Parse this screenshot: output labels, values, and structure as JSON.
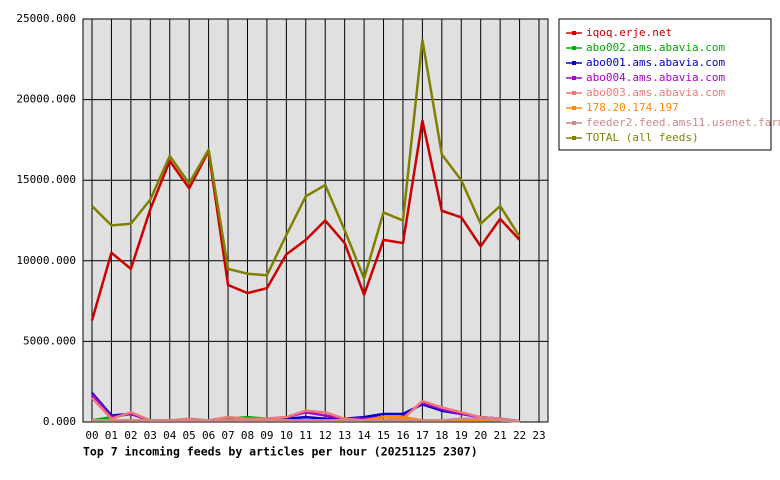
{
  "chart_data": {
    "type": "line",
    "title": "Top 7 incoming feeds by articles per hour (20251125 2307)",
    "categories": [
      "00",
      "01",
      "02",
      "03",
      "04",
      "05",
      "06",
      "07",
      "08",
      "09",
      "10",
      "11",
      "12",
      "13",
      "14",
      "15",
      "16",
      "17",
      "18",
      "19",
      "20",
      "21",
      "22",
      "23"
    ],
    "ylim": [
      0,
      25000
    ],
    "yticks": [
      {
        "value": 0,
        "label": "0.000"
      },
      {
        "value": 5000,
        "label": "5000.000"
      },
      {
        "value": 10000,
        "label": "10000.000"
      },
      {
        "value": 15000,
        "label": "15000.000"
      },
      {
        "value": 20000,
        "label": "20000.000"
      },
      {
        "value": 25000,
        "label": "25000.000"
      }
    ],
    "grid": true,
    "legend": "right",
    "series": [
      {
        "name": "iqoq.erje.net",
        "color": "#cc0000",
        "values": [
          6300,
          10500,
          9500,
          13200,
          16200,
          14500,
          16800,
          8500,
          8000,
          8300,
          10400,
          11300,
          12500,
          11100,
          7900,
          11300,
          11100,
          18700,
          13100,
          12700,
          10900,
          12600,
          11300,
          null
        ]
      },
      {
        "name": "abo002.ams.abavia.com",
        "color": "#00aa00",
        "values": [
          100,
          300,
          500,
          100,
          100,
          100,
          100,
          200,
          300,
          200,
          200,
          100,
          100,
          100,
          100,
          100,
          100,
          100,
          100,
          100,
          100,
          100,
          50,
          null
        ]
      },
      {
        "name": "abo001.ams.abavia.com",
        "color": "#0000cc",
        "values": [
          1800,
          400,
          500,
          100,
          100,
          100,
          100,
          100,
          100,
          100,
          200,
          300,
          200,
          200,
          300,
          500,
          500,
          1100,
          700,
          500,
          300,
          200,
          50,
          null
        ]
      },
      {
        "name": "abo004.ams.abavia.com",
        "color": "#aa00cc",
        "values": [
          1700,
          300,
          500,
          100,
          100,
          100,
          100,
          100,
          100,
          200,
          300,
          600,
          400,
          200,
          200,
          300,
          300,
          1200,
          800,
          500,
          300,
          200,
          50,
          null
        ]
      },
      {
        "name": "abo003.ams.abavia.com",
        "color": "#ee7777",
        "values": [
          1500,
          200,
          600,
          100,
          100,
          200,
          100,
          300,
          200,
          200,
          300,
          700,
          600,
          200,
          100,
          300,
          200,
          1300,
          900,
          600,
          300,
          200,
          50,
          null
        ]
      },
      {
        "name": "178.20.174.197",
        "color": "#ff8800",
        "values": [
          100,
          100,
          100,
          100,
          100,
          100,
          100,
          100,
          100,
          100,
          100,
          100,
          100,
          100,
          100,
          300,
          300,
          100,
          100,
          100,
          100,
          100,
          50,
          null
        ]
      },
      {
        "name": "feeder2.feed.ams11.usenet.farm",
        "color": "#cc8888",
        "values": [
          100,
          100,
          100,
          100,
          100,
          100,
          100,
          100,
          100,
          100,
          100,
          100,
          100,
          100,
          100,
          100,
          100,
          100,
          100,
          200,
          200,
          100,
          50,
          null
        ]
      },
      {
        "name": "TOTAL (all feeds)",
        "color": "#808000",
        "values": [
          13400,
          12200,
          12300,
          13800,
          16500,
          14800,
          16900,
          9500,
          9200,
          9100,
          11600,
          14000,
          14700,
          11900,
          8900,
          13000,
          12500,
          23700,
          16600,
          15000,
          12300,
          13400,
          11500,
          null
        ]
      }
    ]
  }
}
